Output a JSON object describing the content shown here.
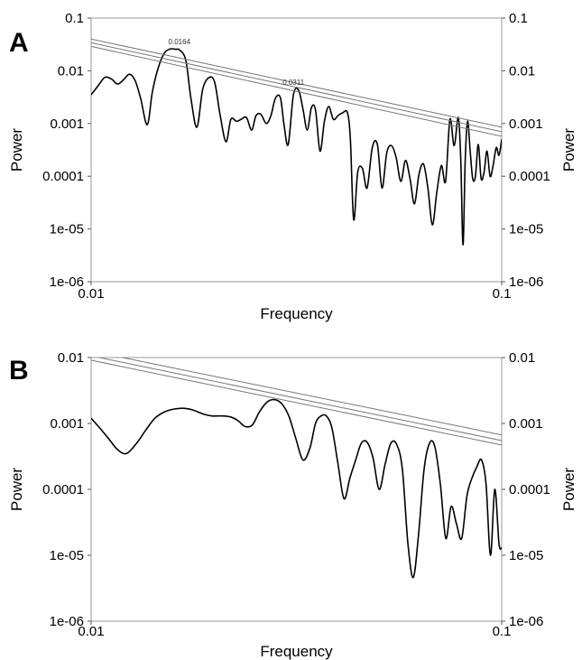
{
  "chart_data": [
    {
      "type": "line",
      "panel": "A",
      "xscale": "log",
      "yscale": "log",
      "xlim": [
        0.01,
        0.1
      ],
      "ylim": [
        1e-06,
        0.1
      ],
      "xlabel": "Frequency",
      "ylabel": "Power",
      "ylabel_right": "Power",
      "x_ticks": [
        "0.01",
        "0.1"
      ],
      "y_ticks": [
        "0.1",
        "0.01",
        "0.001",
        "0.0001",
        "1e-05",
        "1e-06"
      ],
      "grid": false,
      "colors": {
        "spectrum": "#000000",
        "significance": "#777777"
      },
      "annotations": [
        {
          "text": "0.0164",
          "x": 0.0164,
          "y": 0.025
        },
        {
          "text": "0.0311",
          "x": 0.0311,
          "y": 0.0043
        }
      ],
      "series": [
        {
          "x": [
            0.01,
            0.0104,
            0.0108,
            0.0112,
            0.0116,
            0.012,
            0.0124,
            0.0128,
            0.0132,
            0.0137,
            0.0141,
            0.0146,
            0.0151,
            0.0156,
            0.0161,
            0.0164,
            0.017,
            0.0175,
            0.0181,
            0.0187,
            0.0194,
            0.02,
            0.0206,
            0.0213,
            0.0219,
            0.0226,
            0.0232,
            0.0239,
            0.0246,
            0.0252,
            0.0259,
            0.0267,
            0.0274,
            0.0281,
            0.0289,
            0.0295,
            0.0302,
            0.0311,
            0.032,
            0.0328,
            0.0336,
            0.0344,
            0.0352,
            0.0361,
            0.037,
            0.0379,
            0.0389,
            0.0399,
            0.041,
            0.0421,
            0.0428,
            0.0436,
            0.0446,
            0.0458,
            0.047,
            0.0484,
            0.0498,
            0.0511,
            0.0525,
            0.0539,
            0.0553,
            0.0568,
            0.0583,
            0.0598,
            0.0613,
            0.0629,
            0.0645,
            0.0661,
            0.0678,
            0.0695,
            0.0713,
            0.073,
            0.0748,
            0.0766,
            0.0784,
            0.0795,
            0.0805,
            0.0815,
            0.0826,
            0.0838,
            0.085,
            0.0863,
            0.0877,
            0.0891,
            0.0906,
            0.0921,
            0.0937,
            0.0953,
            0.097,
            0.0985,
            0.1
          ],
          "y": [
            0.0035,
            0.0052,
            0.0075,
            0.007,
            0.0056,
            0.0068,
            0.0086,
            0.0065,
            0.003,
            0.00095,
            0.004,
            0.012,
            0.022,
            0.026,
            0.0255,
            0.025,
            0.016,
            0.003,
            0.00085,
            0.0045,
            0.0075,
            0.006,
            0.0015,
            0.00045,
            0.0012,
            0.0011,
            0.0012,
            0.0013,
            0.00075,
            0.0014,
            0.0015,
            0.001,
            0.0014,
            0.003,
            0.0031,
            0.00095,
            0.0004,
            0.0035,
            0.0043,
            0.0019,
            0.00075,
            0.002,
            0.0018,
            0.0003,
            0.0011,
            0.0021,
            0.0012,
            0.0014,
            0.0016,
            0.0016,
            0.0005,
            1.5e-05,
            0.00012,
            0.00014,
            6e-05,
            0.00035,
            0.0004,
            6e-05,
            0.00028,
            0.00038,
            0.00023,
            8e-05,
            0.0002,
            9e-05,
            3e-05,
            0.00011,
            0.00017,
            6e-05,
            1.2e-05,
            5e-05,
            0.00016,
            8e-05,
            0.0012,
            0.00038,
            0.0013,
            0.0002,
            5e-06,
            0.0002,
            0.0011,
            0.0003,
            9e-05,
            0.0001,
            0.0004,
            9e-05,
            0.00012,
            0.0003,
            0.0001,
            0.00016,
            0.00035,
            0.00025,
            0.0005
          ]
        },
        {
          "x": [
            0.01,
            0.1
          ],
          "y": [
            0.04,
            0.00085
          ]
        },
        {
          "x": [
            0.01,
            0.1
          ],
          "y": [
            0.034,
            0.0007
          ]
        },
        {
          "x": [
            0.01,
            0.1
          ],
          "y": [
            0.029,
            0.00057
          ]
        }
      ]
    },
    {
      "type": "line",
      "panel": "B",
      "xscale": "log",
      "yscale": "log",
      "xlim": [
        0.01,
        0.1
      ],
      "ylim": [
        1e-06,
        0.01
      ],
      "xlabel": "Frequency",
      "ylabel": "Power",
      "ylabel_right": "Power",
      "x_ticks": [
        "0.01",
        "0.1"
      ],
      "y_ticks": [
        "0.01",
        "0.001",
        "0.0001",
        "1e-05",
        "1e-06"
      ],
      "grid": false,
      "colors": {
        "spectrum": "#000000",
        "significance": "#777777"
      },
      "series": [
        {
          "x": [
            0.01,
            0.0105,
            0.011,
            0.0116,
            0.0122,
            0.0129,
            0.0136,
            0.0143,
            0.0151,
            0.0159,
            0.0168,
            0.0177,
            0.0187,
            0.0197,
            0.0208,
            0.0219,
            0.0228,
            0.0237,
            0.0247,
            0.0257,
            0.0268,
            0.0279,
            0.0291,
            0.0303,
            0.0315,
            0.0328,
            0.0341,
            0.0352,
            0.0363,
            0.0374,
            0.0386,
            0.0399,
            0.0413,
            0.0427,
            0.0441,
            0.0455,
            0.047,
            0.0486,
            0.0503,
            0.052,
            0.0537,
            0.0555,
            0.0573,
            0.0591,
            0.0609,
            0.0627,
            0.0647,
            0.0667,
            0.0687,
            0.0709,
            0.0731,
            0.0753,
            0.0776,
            0.0799,
            0.0823,
            0.0847,
            0.087,
            0.0893,
            0.0916,
            0.0939,
            0.0962,
            0.0985,
            0.1
          ],
          "y": [
            0.0012,
            0.00085,
            0.0006,
            0.0004,
            0.00035,
            0.0005,
            0.0008,
            0.0012,
            0.0015,
            0.00165,
            0.0017,
            0.0016,
            0.0014,
            0.0013,
            0.0013,
            0.00125,
            0.0011,
            0.0009,
            0.00095,
            0.0015,
            0.0021,
            0.0023,
            0.002,
            0.0013,
            0.0006,
            0.00028,
            0.00042,
            0.001,
            0.0013,
            0.0013,
            0.00085,
            0.00025,
            7.2e-05,
            0.00015,
            0.00028,
            0.0005,
            0.00052,
            0.0003,
            0.0001,
            0.00024,
            0.0005,
            0.00048,
            0.0002,
            1.5e-05,
            4.6e-06,
            2e-05,
            0.0002,
            0.0005,
            0.00045,
            0.00012,
            1.8e-05,
            5.5e-05,
            3e-05,
            1.8e-05,
            8e-05,
            0.00015,
            0.00022,
            0.00028,
            0.00012,
            1e-05,
            0.0001,
            1.5e-05,
            1.3e-05
          ]
        },
        {
          "x": [
            0.01,
            0.1
          ],
          "y": [
            0.0125,
            0.00067
          ]
        },
        {
          "x": [
            0.01,
            0.1
          ],
          "y": [
            0.0106,
            0.00055
          ]
        },
        {
          "x": [
            0.01,
            0.1
          ],
          "y": [
            0.0091,
            0.00047
          ]
        }
      ]
    }
  ]
}
